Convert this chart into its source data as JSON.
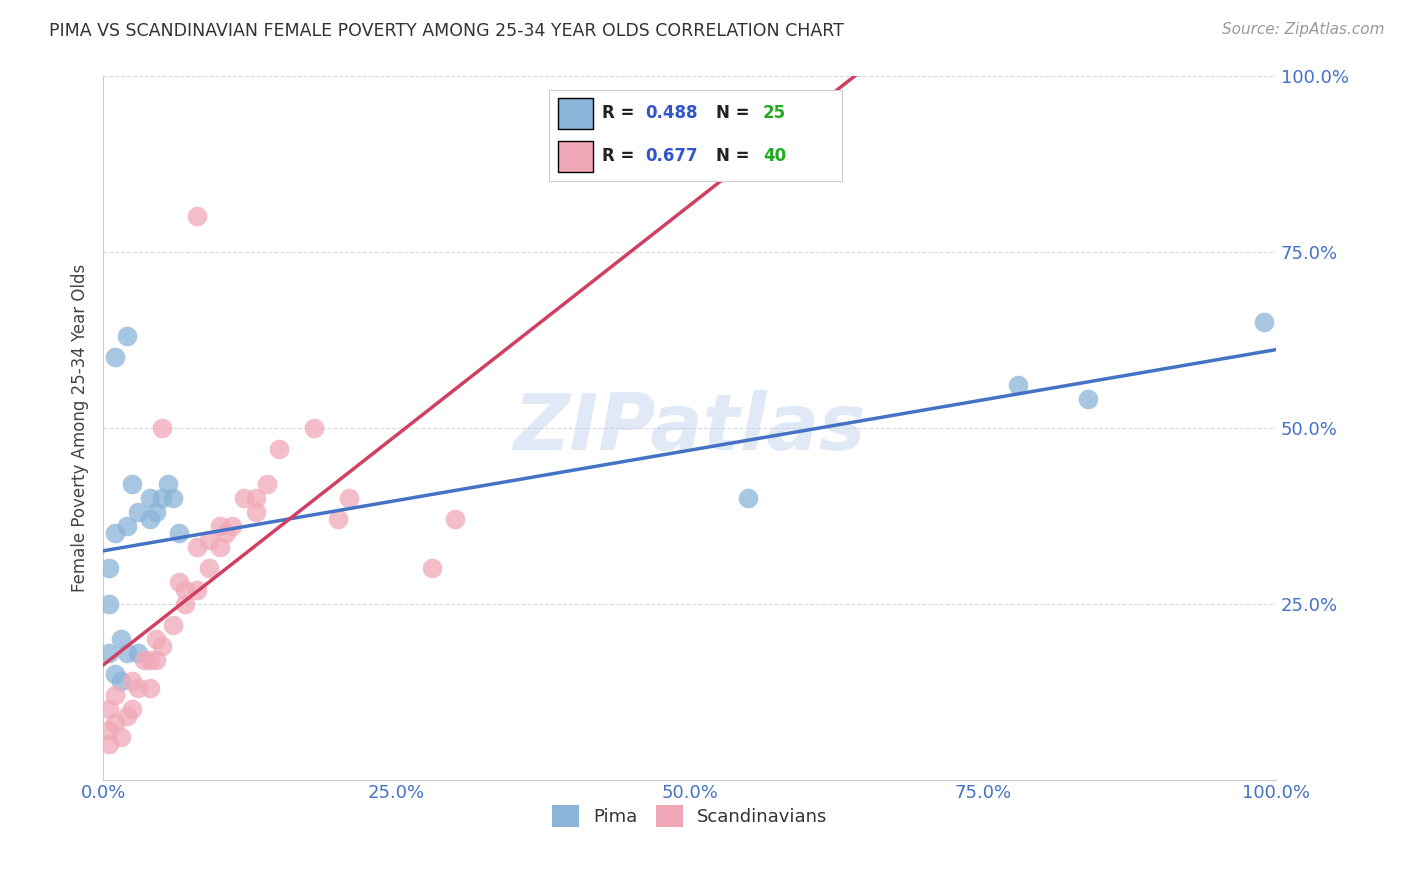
{
  "title": "PIMA VS SCANDINAVIAN FEMALE POVERTY AMONG 25-34 YEAR OLDS CORRELATION CHART",
  "source": "Source: ZipAtlas.com",
  "ylabel": "Female Poverty Among 25-34 Year Olds",
  "xlim": [
    0,
    1.0
  ],
  "ylim": [
    0,
    1.0
  ],
  "xticks": [
    0.0,
    0.25,
    0.5,
    0.75,
    1.0
  ],
  "yticks": [
    0.25,
    0.5,
    0.75,
    1.0
  ],
  "xtick_labels": [
    "0.0%",
    "25.0%",
    "50.0%",
    "75.0%",
    "100.0%"
  ],
  "ytick_labels": [
    "25.0%",
    "50.0%",
    "75.0%",
    "100.0%"
  ],
  "background_color": "#ffffff",
  "grid_color": "#d8d8d8",
  "watermark": "ZIPatlas",
  "pima_color": "#8ab4d8",
  "scandinavian_color": "#f0a8b8",
  "pima_line_color": "#4472c4",
  "scandinavian_line_color": "#d04060",
  "pima_R": 0.488,
  "pima_N": 25,
  "scandinavian_R": 0.677,
  "scandinavian_N": 40,
  "legend_R_color": "#3355cc",
  "legend_N_color": "#22aa22",
  "pima_x": [
    0.005,
    0.005,
    0.01,
    0.01,
    0.015,
    0.015,
    0.02,
    0.02,
    0.025,
    0.03,
    0.03,
    0.04,
    0.04,
    0.045,
    0.05,
    0.055,
    0.06,
    0.065,
    0.005,
    0.01,
    0.02,
    0.55,
    0.78,
    0.84,
    0.99
  ],
  "pima_y": [
    0.3,
    0.18,
    0.15,
    0.35,
    0.2,
    0.14,
    0.18,
    0.36,
    0.42,
    0.38,
    0.18,
    0.37,
    0.4,
    0.38,
    0.4,
    0.42,
    0.4,
    0.35,
    0.25,
    0.6,
    0.63,
    0.4,
    0.56,
    0.54,
    0.65
  ],
  "scandinavian_x": [
    0.005,
    0.005,
    0.005,
    0.01,
    0.01,
    0.015,
    0.02,
    0.025,
    0.025,
    0.03,
    0.035,
    0.04,
    0.04,
    0.045,
    0.045,
    0.05,
    0.06,
    0.065,
    0.07,
    0.07,
    0.08,
    0.08,
    0.09,
    0.09,
    0.1,
    0.1,
    0.105,
    0.11,
    0.12,
    0.13,
    0.13,
    0.14,
    0.15,
    0.18,
    0.2,
    0.21,
    0.28,
    0.3,
    0.08,
    0.05
  ],
  "scandinavian_y": [
    0.05,
    0.07,
    0.1,
    0.08,
    0.12,
    0.06,
    0.09,
    0.1,
    0.14,
    0.13,
    0.17,
    0.13,
    0.17,
    0.17,
    0.2,
    0.19,
    0.22,
    0.28,
    0.25,
    0.27,
    0.27,
    0.33,
    0.3,
    0.34,
    0.33,
    0.36,
    0.35,
    0.36,
    0.4,
    0.38,
    0.4,
    0.42,
    0.47,
    0.5,
    0.37,
    0.4,
    0.3,
    0.37,
    0.8,
    0.5
  ]
}
